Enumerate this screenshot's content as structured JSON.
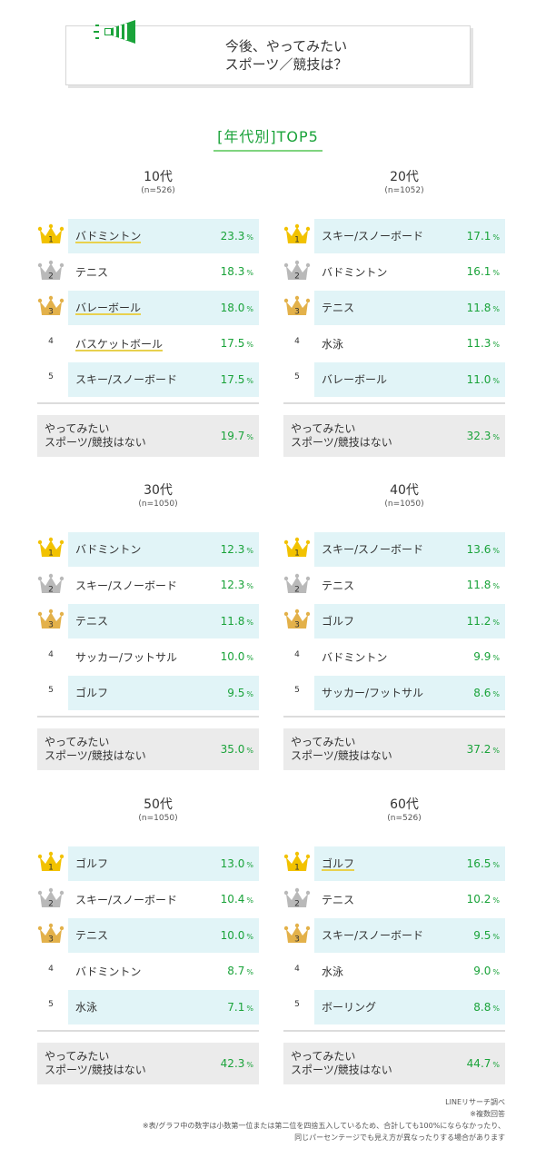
{
  "header": {
    "title_line1": "今後、やってみたい",
    "title_line2": "スポーツ／競技は？"
  },
  "subtitle": "[年代別]TOP5",
  "chart_data": [
    {
      "type": "table",
      "age": "10代",
      "n": "(n=526)",
      "rows": [
        {
          "rank": "1",
          "sport": "バドミントン",
          "value": 23.3,
          "value_text": "23.3"
        },
        {
          "rank": "2",
          "sport": "テニス",
          "value": 18.3,
          "value_text": "18.3"
        },
        {
          "rank": "3",
          "sport": "バレーボール",
          "value": 18.0,
          "value_text": "18.0"
        },
        {
          "rank": "4",
          "sport": "バスケットボール",
          "value": 17.5,
          "value_text": "17.5"
        },
        {
          "rank": "5",
          "sport": "スキー/スノーボード",
          "value": 17.5,
          "value_text": "17.5"
        }
      ],
      "none": {
        "label": "やってみたい\nスポーツ/競技はない",
        "value": 19.7,
        "value_text": "19.7"
      }
    },
    {
      "type": "table",
      "age": "20代",
      "n": "(n=1052)",
      "rows": [
        {
          "rank": "1",
          "sport": "スキー/スノーボード",
          "value": 17.1,
          "value_text": "17.1"
        },
        {
          "rank": "2",
          "sport": "バドミントン",
          "value": 16.1,
          "value_text": "16.1"
        },
        {
          "rank": "3",
          "sport": "テニス",
          "value": 11.8,
          "value_text": "11.8"
        },
        {
          "rank": "4",
          "sport": "水泳",
          "value": 11.3,
          "value_text": "11.3"
        },
        {
          "rank": "5",
          "sport": "バレーボール",
          "value": 11.0,
          "value_text": "11.0"
        }
      ],
      "none": {
        "label": "やってみたい\nスポーツ/競技はない",
        "value": 32.3,
        "value_text": "32.3"
      }
    },
    {
      "type": "table",
      "age": "30代",
      "n": "(n=1050)",
      "rows": [
        {
          "rank": "1",
          "sport": "バドミントン",
          "value": 12.3,
          "value_text": "12.3"
        },
        {
          "rank": "2",
          "sport": "スキー/スノーボード",
          "value": 12.3,
          "value_text": "12.3"
        },
        {
          "rank": "3",
          "sport": "テニス",
          "value": 11.8,
          "value_text": "11.8"
        },
        {
          "rank": "4",
          "sport": "サッカー/フットサル",
          "value": 10.0,
          "value_text": "10.0"
        },
        {
          "rank": "5",
          "sport": "ゴルフ",
          "value": 9.5,
          "value_text": "9.5"
        }
      ],
      "none": {
        "label": "やってみたい\nスポーツ/競技はない",
        "value": 35.0,
        "value_text": "35.0"
      }
    },
    {
      "type": "table",
      "age": "40代",
      "n": "(n=1050)",
      "rows": [
        {
          "rank": "1",
          "sport": "スキー/スノーボード",
          "value": 13.6,
          "value_text": "13.6"
        },
        {
          "rank": "2",
          "sport": "テニス",
          "value": 11.8,
          "value_text": "11.8"
        },
        {
          "rank": "3",
          "sport": "ゴルフ",
          "value": 11.2,
          "value_text": "11.2"
        },
        {
          "rank": "4",
          "sport": "バドミントン",
          "value": 9.9,
          "value_text": "9.9"
        },
        {
          "rank": "5",
          "sport": "サッカー/フットサル",
          "value": 8.6,
          "value_text": "8.6"
        }
      ],
      "none": {
        "label": "やってみたい\nスポーツ/競技はない",
        "value": 37.2,
        "value_text": "37.2"
      }
    },
    {
      "type": "table",
      "age": "50代",
      "n": "(n=1050)",
      "rows": [
        {
          "rank": "1",
          "sport": "ゴルフ",
          "value": 13.0,
          "value_text": "13.0"
        },
        {
          "rank": "2",
          "sport": "スキー/スノーボード",
          "value": 10.4,
          "value_text": "10.4"
        },
        {
          "rank": "3",
          "sport": "テニス",
          "value": 10.0,
          "value_text": "10.0"
        },
        {
          "rank": "4",
          "sport": "バドミントン",
          "value": 8.7,
          "value_text": "8.7"
        },
        {
          "rank": "5",
          "sport": "水泳",
          "value": 7.1,
          "value_text": "7.1"
        }
      ],
      "none": {
        "label": "やってみたい\nスポーツ/競技はない",
        "value": 42.3,
        "value_text": "42.3"
      }
    },
    {
      "type": "table",
      "age": "60代",
      "n": "(n=526)",
      "rows": [
        {
          "rank": "1",
          "sport": "ゴルフ",
          "value": 16.5,
          "value_text": "16.5"
        },
        {
          "rank": "2",
          "sport": "テニス",
          "value": 10.2,
          "value_text": "10.2"
        },
        {
          "rank": "3",
          "sport": "スキー/スノーボード",
          "value": 9.5,
          "value_text": "9.5"
        },
        {
          "rank": "4",
          "sport": "水泳",
          "value": 9.0,
          "value_text": "9.0"
        },
        {
          "rank": "5",
          "sport": "ボーリング",
          "value": 8.8,
          "value_text": "8.8"
        }
      ],
      "none": {
        "label": "やってみたい\nスポーツ/競技はない",
        "value": 44.7,
        "value_text": "44.7"
      }
    }
  ],
  "percent_unit": "%",
  "footer": {
    "line1": "LINEリサーチ調べ",
    "line2": "※複数回答",
    "line3": "※表/グラフ中の数字は小数第一位または第二位を四捨五入しているため、合計しても100%にならなかったり、",
    "line4": "同じパーセンテージでも見え方が異なったりする場合があります"
  },
  "colors": {
    "accent_green": "#1aa33a",
    "row_shade": "#e1f4f7",
    "none_bg": "#ebebeb",
    "gold": "#f2c200",
    "silver": "#b9b9b9",
    "bronze": "#e3b14a",
    "underline_yellow": "#e8d14e"
  },
  "icons": {
    "title": "megaphone-icon",
    "rank1": "gold-crown-icon",
    "rank2": "silver-crown-icon",
    "rank3": "bronze-crown-icon"
  }
}
